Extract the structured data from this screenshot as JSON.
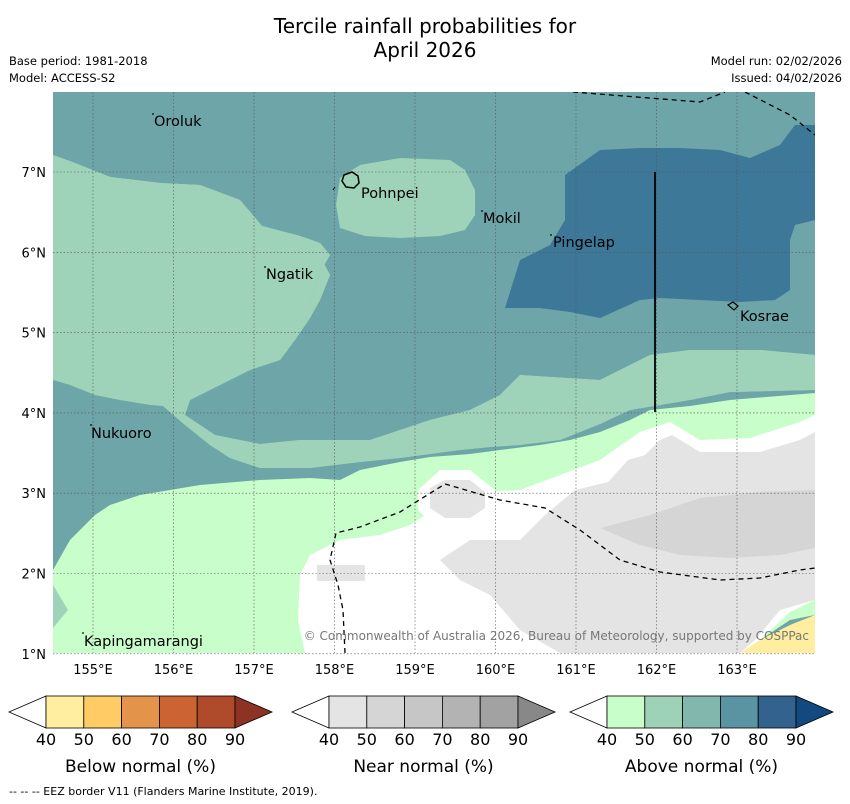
{
  "title_line1": "Tercile rainfall probabilities for",
  "title_line2": "April 2026",
  "meta": {
    "base_period": "Base period: 1981-2018",
    "model": "Model: ACCESS-S2",
    "model_run": "Model run: 02/02/2026",
    "issued": "Issued: 04/02/2026"
  },
  "map": {
    "lon_labels": [
      "155°E",
      "156°E",
      "157°E",
      "158°E",
      "159°E",
      "160°E",
      "161°E",
      "162°E",
      "163°E"
    ],
    "lat_labels": [
      "7°N",
      "6°N",
      "5°N",
      "4°N",
      "3°N",
      "2°N",
      "1°N"
    ],
    "places": [
      "Oroluk",
      "Pohnpei",
      "Mokil",
      "Pingelap",
      "Ngatik",
      "Kosrae",
      "Nukuoro",
      "Kapingamarangi"
    ],
    "copyright": "© Commonwealth of Australia 2026, Bureau of Meteorology, supported by COSPPac"
  },
  "colorbars": [
    {
      "label": "Below normal (%)",
      "ticks": [
        "40",
        "50",
        "60",
        "70",
        "80",
        "90"
      ],
      "colors": [
        "#ffffff",
        "#ffeea0",
        "#fecb65",
        "#e3944a",
        "#cc6333",
        "#af4a2b",
        "#8e3224"
      ]
    },
    {
      "label": "Near normal (%)",
      "ticks": [
        "40",
        "50",
        "60",
        "70",
        "80",
        "90"
      ],
      "colors": [
        "#ffffff",
        "#e4e4e4",
        "#d5d5d5",
        "#c6c6c6",
        "#b3b3b3",
        "#a2a2a2",
        "#888888"
      ]
    },
    {
      "label": "Above normal (%)",
      "ticks": [
        "40",
        "50",
        "60",
        "70",
        "80",
        "90"
      ],
      "colors": [
        "#ffffff",
        "#c8fec9",
        "#9dd2b8",
        "#82b7ad",
        "#5a94a2",
        "#33628f",
        "#124a80"
      ]
    }
  ],
  "footer": "--  --  -- EEZ border V11 (Flanders Marine Institute, 2019)."
}
